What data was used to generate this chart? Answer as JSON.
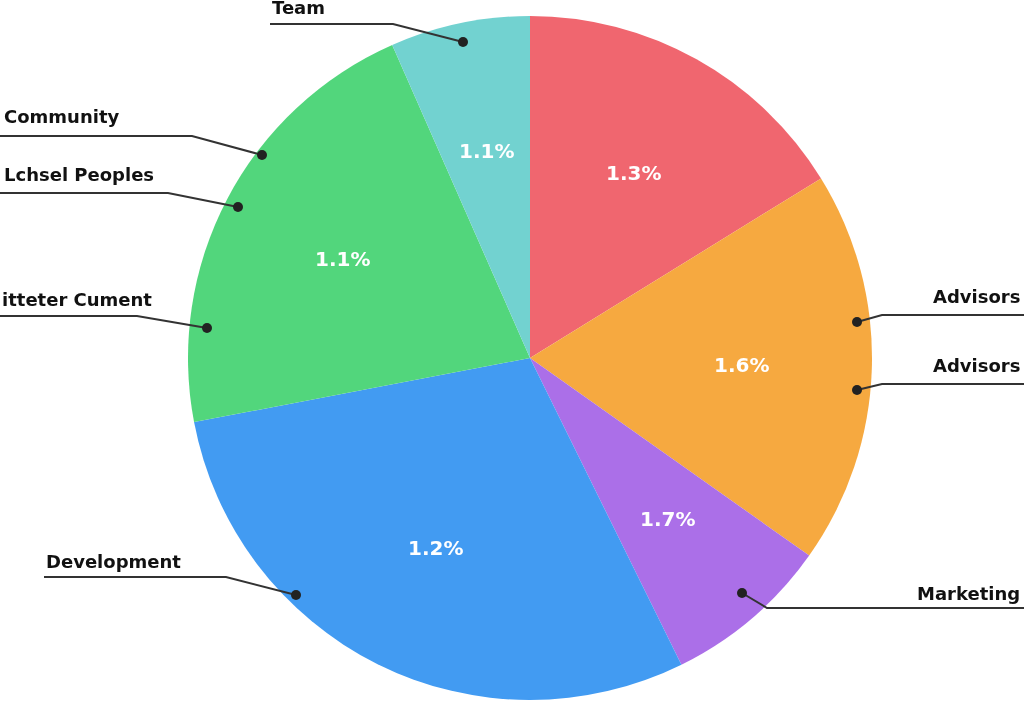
{
  "chart_data": {
    "type": "pie",
    "categories": [
      null,
      "Advisors",
      "Marketing",
      "Development",
      "itteter Cument",
      "Team"
    ],
    "values": [
      16.2,
      18.6,
      7.9,
      29.3,
      21.4,
      6.6
    ],
    "colors": [
      "#f0666f",
      "#f6a940",
      "#ab6fe8",
      "#429bf2",
      "#52d67c",
      "#72d2d0"
    ],
    "annotations": [
      "1.3%",
      "1.6%",
      "1.7%",
      "1.2%",
      "1.1%",
      "1.1%",
      "Community",
      "Lchsel Peoples",
      "Advisors"
    ],
    "legend": false
  }
}
